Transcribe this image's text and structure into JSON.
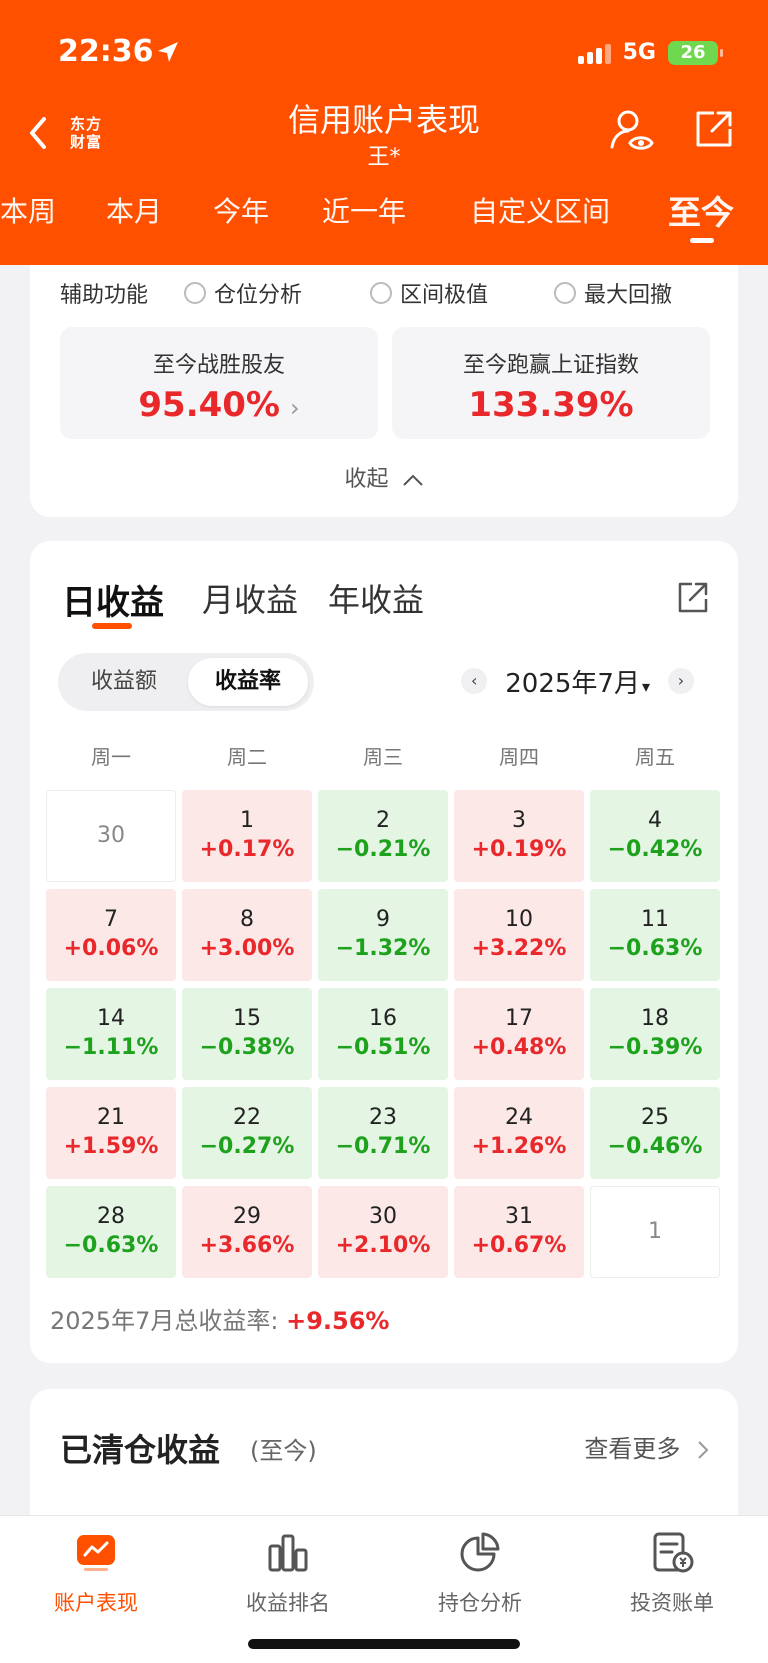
{
  "status_bar": {
    "time": "22:36",
    "network": "5G",
    "battery": "26"
  },
  "header": {
    "brand_line1": "东方",
    "brand_line2": "财富",
    "title": "信用账户表现",
    "subtitle": "王*"
  },
  "period_tabs": [
    "本周",
    "本月",
    "今年",
    "近一年",
    "自定义区间",
    "至今"
  ],
  "active_period_tab": "至今",
  "aux": {
    "label": "辅助功能",
    "options": [
      "仓位分析",
      "区间极值",
      "最大回撤"
    ]
  },
  "stats": {
    "beat_label": "至今战胜股友",
    "beat_value": "95.40%",
    "beat_chevron": "›",
    "index_label": "至今跑赢上证指数",
    "index_value": "133.39%"
  },
  "collapse_label": "收起",
  "returns": {
    "tabs": [
      "日收益",
      "月收益",
      "年收益"
    ],
    "active_tab": "日收益",
    "segments": [
      "收益额",
      "收益率"
    ],
    "active_segment": "收益率",
    "month": "2025年7月",
    "weekdays": [
      "周一",
      "周二",
      "周三",
      "周四",
      "周五"
    ],
    "weeks": [
      [
        {
          "day": "30",
          "value": "",
          "type": "empty"
        },
        {
          "day": "1",
          "value": "+0.17%",
          "type": "pos"
        },
        {
          "day": "2",
          "value": "−0.21%",
          "type": "neg"
        },
        {
          "day": "3",
          "value": "+0.19%",
          "type": "pos"
        },
        {
          "day": "4",
          "value": "−0.42%",
          "type": "neg"
        }
      ],
      [
        {
          "day": "7",
          "value": "+0.06%",
          "type": "pos"
        },
        {
          "day": "8",
          "value": "+3.00%",
          "type": "pos"
        },
        {
          "day": "9",
          "value": "−1.32%",
          "type": "neg"
        },
        {
          "day": "10",
          "value": "+3.22%",
          "type": "pos"
        },
        {
          "day": "11",
          "value": "−0.63%",
          "type": "neg"
        }
      ],
      [
        {
          "day": "14",
          "value": "−1.11%",
          "type": "neg"
        },
        {
          "day": "15",
          "value": "−0.38%",
          "type": "neg"
        },
        {
          "day": "16",
          "value": "−0.51%",
          "type": "neg"
        },
        {
          "day": "17",
          "value": "+0.48%",
          "type": "pos"
        },
        {
          "day": "18",
          "value": "−0.39%",
          "type": "neg"
        }
      ],
      [
        {
          "day": "21",
          "value": "+1.59%",
          "type": "pos"
        },
        {
          "day": "22",
          "value": "−0.27%",
          "type": "neg"
        },
        {
          "day": "23",
          "value": "−0.71%",
          "type": "neg"
        },
        {
          "day": "24",
          "value": "+1.26%",
          "type": "pos"
        },
        {
          "day": "25",
          "value": "−0.46%",
          "type": "neg"
        }
      ],
      [
        {
          "day": "28",
          "value": "−0.63%",
          "type": "neg"
        },
        {
          "day": "29",
          "value": "+3.66%",
          "type": "pos"
        },
        {
          "day": "30",
          "value": "+2.10%",
          "type": "pos"
        },
        {
          "day": "31",
          "value": "+0.67%",
          "type": "pos"
        },
        {
          "day": "1",
          "value": "",
          "type": "empty"
        }
      ]
    ],
    "total_label": "2025年7月总收益率:",
    "total_value": "+9.56%"
  },
  "closed": {
    "title": "已清仓收益",
    "subtitle": "(至今)",
    "more": "查看更多"
  },
  "bottom_nav": [
    {
      "label": "账户表现",
      "icon": "chart-line-icon",
      "active": true
    },
    {
      "label": "收益排名",
      "icon": "bar-chart-icon",
      "active": false
    },
    {
      "label": "持仓分析",
      "icon": "pie-chart-icon",
      "active": false
    },
    {
      "label": "投资账单",
      "icon": "bill-icon",
      "active": false
    }
  ],
  "colors": {
    "brand": "#ff5000",
    "gain": "#e8282b",
    "loss": "#1ea21e",
    "gain_bg": "#fde8e8",
    "loss_bg": "#e4f5e4"
  }
}
